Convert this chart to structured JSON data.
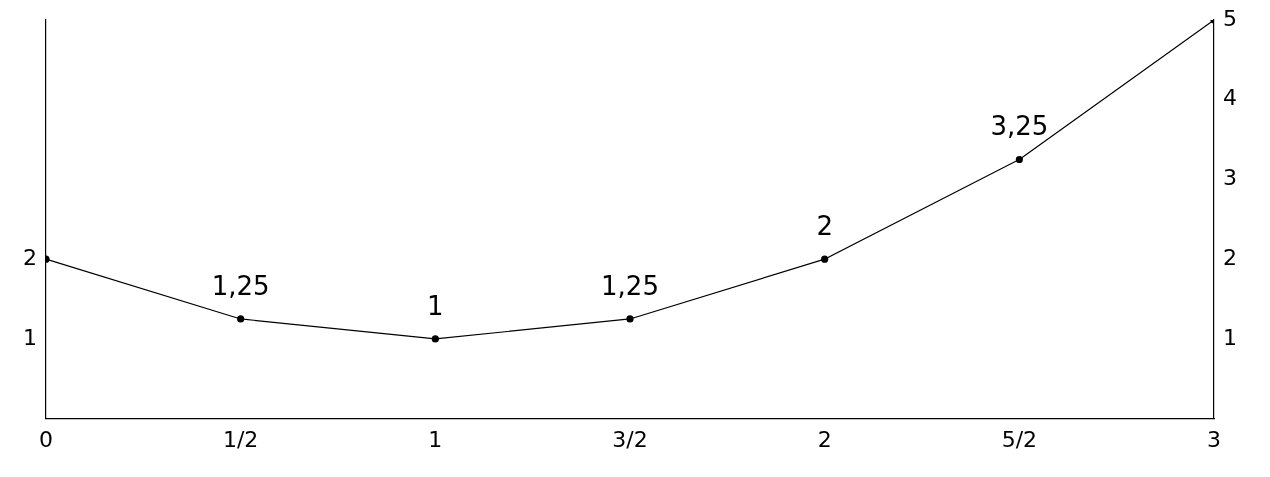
{
  "chart_data": {
    "type": "line",
    "x": [
      0,
      0.5,
      1,
      1.5,
      2,
      2.5,
      3
    ],
    "series": [
      {
        "color": "#000000",
        "values": [
          2,
          1.25,
          1,
          1.25,
          2,
          3.25,
          5
        ],
        "value_labels": [
          null,
          "1,25",
          "1",
          "1,25",
          "2",
          "3,25",
          null
        ]
      }
    ],
    "xlim": [
      0,
      3
    ],
    "xticks": [
      0,
      {
        "value": 0.5,
        "label": "1/2"
      },
      1,
      {
        "value": 1.5,
        "label": "3/2"
      },
      2,
      {
        "value": 2.5,
        "label": "5/2"
      },
      3
    ],
    "ylim": [
      0,
      5
    ],
    "yticks": [
      1,
      2
    ],
    "y2lim": [
      0,
      5
    ],
    "y2ticks": [
      1,
      2,
      3,
      4,
      5
    ],
    "grid": false,
    "legend": false,
    "marker": "circle",
    "line_style": "solid"
  }
}
